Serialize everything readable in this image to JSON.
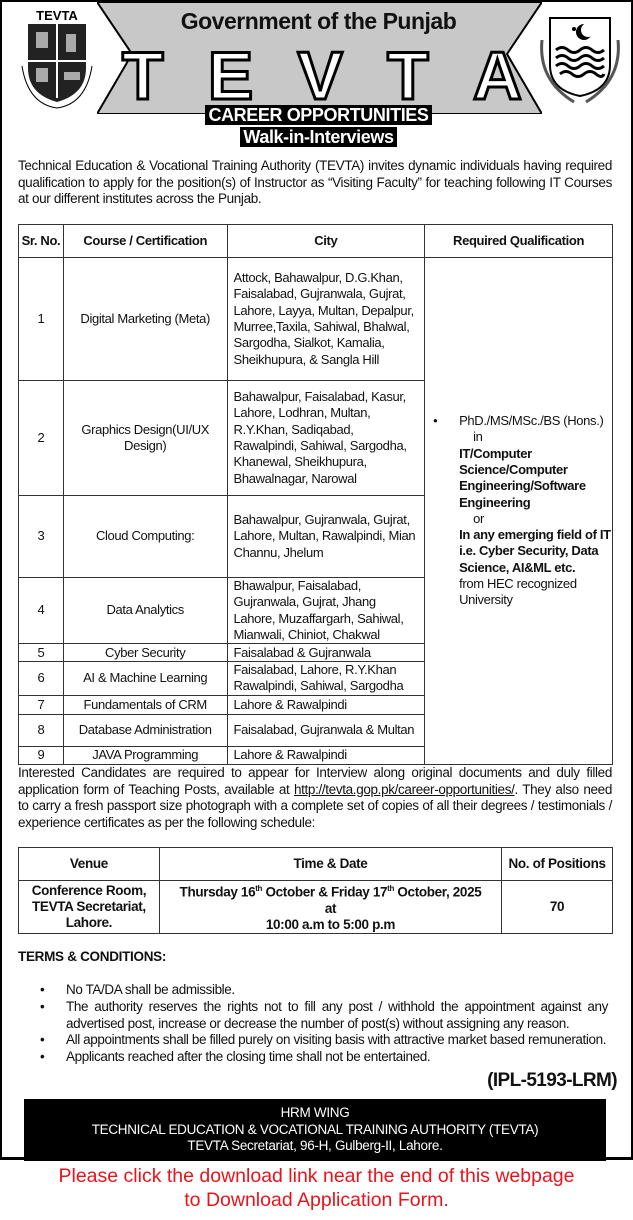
{
  "header": {
    "logo_left_text": "TEVTA",
    "logo_left_ring": "GOVERNMENT OF THE PUNJAB",
    "government": "Government of the Punjab",
    "tevta_letters": [
      "T",
      "E",
      "V",
      "T",
      "A"
    ],
    "band_color": "#c8c8c8"
  },
  "headline": {
    "title": "CAREER OPPORTUNITIES",
    "subtitle": "Walk-in-Interviews"
  },
  "intro": "Technical Education & Vocational Training Authority (TEVTA) invites dynamic individuals having required qualification to apply for the position(s) of Instructor as “Visiting Faculty” for teaching following IT Courses at our different institutes across the Punjab.",
  "courses": {
    "headers": [
      "Sr. No.",
      "Course / Certification",
      "City",
      "Required Qualification"
    ],
    "rows": [
      {
        "sr": "1",
        "course": "Digital Marketing (Meta)",
        "city": "Attock, Bahawalpur, D.G.Khan, Faisalabad, Gujranwala, Gujrat, Lahore,  Layya, Multan, Depalpur, Murree,Taxila, Sahiwal, Bhalwal, Sargodha, Sialkot, Kamalia, Sheikhupura, & Sangla Hill"
      },
      {
        "sr": "2",
        "course": "Graphics Design(UI/UX Design)",
        "city": "Bahawalpur, Faisalabad, Kasur, Lahore, Lodhran, Multan, R.Y.Khan, Sadiqabad, Rawalpindi, Sahiwal, Sargodha, Khanewal, Sheikhupura, Bhawalnagar, Narowal"
      },
      {
        "sr": "3",
        "course": "Cloud Computing:",
        "city": "Bahawalpur, Gujranwala, Gujrat, Lahore, Multan, Rawalpindi, Mian Channu, Jhelum"
      },
      {
        "sr": "4",
        "course": "Data Analytics",
        "city": "Bhawalpur, Faisalabad, Gujranwala, Gujrat, Jhang Lahore, Muzaffargarh, Sahiwal, Mianwali, Chiniot, Chakwal"
      },
      {
        "sr": "5",
        "course": "Cyber Security",
        "city": "Faisalabad & Gujranwala"
      },
      {
        "sr": "6",
        "course": "AI & Machine Learning",
        "city": "Faisalabad, Lahore, R.Y.Khan Rawalpindi, Sahiwal, Sargodha"
      },
      {
        "sr": "7",
        "course": "Fundamentals of CRM",
        "city": "Lahore & Rawalpindi"
      },
      {
        "sr": "8",
        "course": "Database Administration",
        "city": "Faisalabad, Gujranwala & Multan"
      },
      {
        "sr": "9",
        "course": "JAVA Programming",
        "city": "Lahore & Rawalpindi"
      }
    ],
    "qualification": {
      "degrees": "PhD./MS/MSc./BS (Hons.)",
      "in": "in",
      "field1": "IT/Computer Science/Computer Engineering/Software Engineering",
      "or": "or",
      "field2": "In any emerging field of IT i.e. Cyber Security, Data Science, AI&ML etc.",
      "suffix": "from HEC recognized University"
    }
  },
  "instructions": {
    "part1": "Interested Candidates are required to appear for Interview along original documents and duly filled application form of Teaching Posts, available at ",
    "link": "http://tevta.gop.pk/career-opportunities/",
    "part2": ". They also need to carry a fresh passport size photograph with a complete set of copies of all their degrees / testimonials / experience certificates as per the following schedule:"
  },
  "schedule": {
    "headers": [
      "Venue",
      "Time & Date",
      "No. of Positions"
    ],
    "venue": [
      "Conference Room,",
      "TEVTA Secretariat,",
      "Lahore."
    ],
    "date_a": "Thursday 16",
    "sup1": "th",
    "date_b": " October & Friday 17",
    "sup2": "th",
    "date_c": " October, 2025",
    "at": "at",
    "time": "10:00 a.m to 5:00 p.m",
    "positions": "70"
  },
  "terms": {
    "title": "TERMS & CONDITIONS:",
    "items": [
      "No TA/DA shall be admissible.",
      "The authority reserves the rights not to fill any post / withhold the appointment against any advertised post, increase or decrease the number of post(s) without assigning any reason.",
      "All appointments shall be filled purely on visiting basis with attractive market based remuneration.",
      "Applicants reached after the closing time shall not be entertained."
    ]
  },
  "reference": "(IPL-5193-LRM)",
  "footer": {
    "line1": "HRM WING",
    "line2": "TECHNICAL EDUCATION & VOCATIONAL TRAINING AUTHORITY (TEVTA)",
    "line3": "TEVTA Secretariat, 96-H, Gulberg-II, Lahore."
  },
  "notice": {
    "line1": "Please click the download link near the end of this webpage",
    "line2": "to Download Application Form.",
    "color": "#e8141b"
  }
}
